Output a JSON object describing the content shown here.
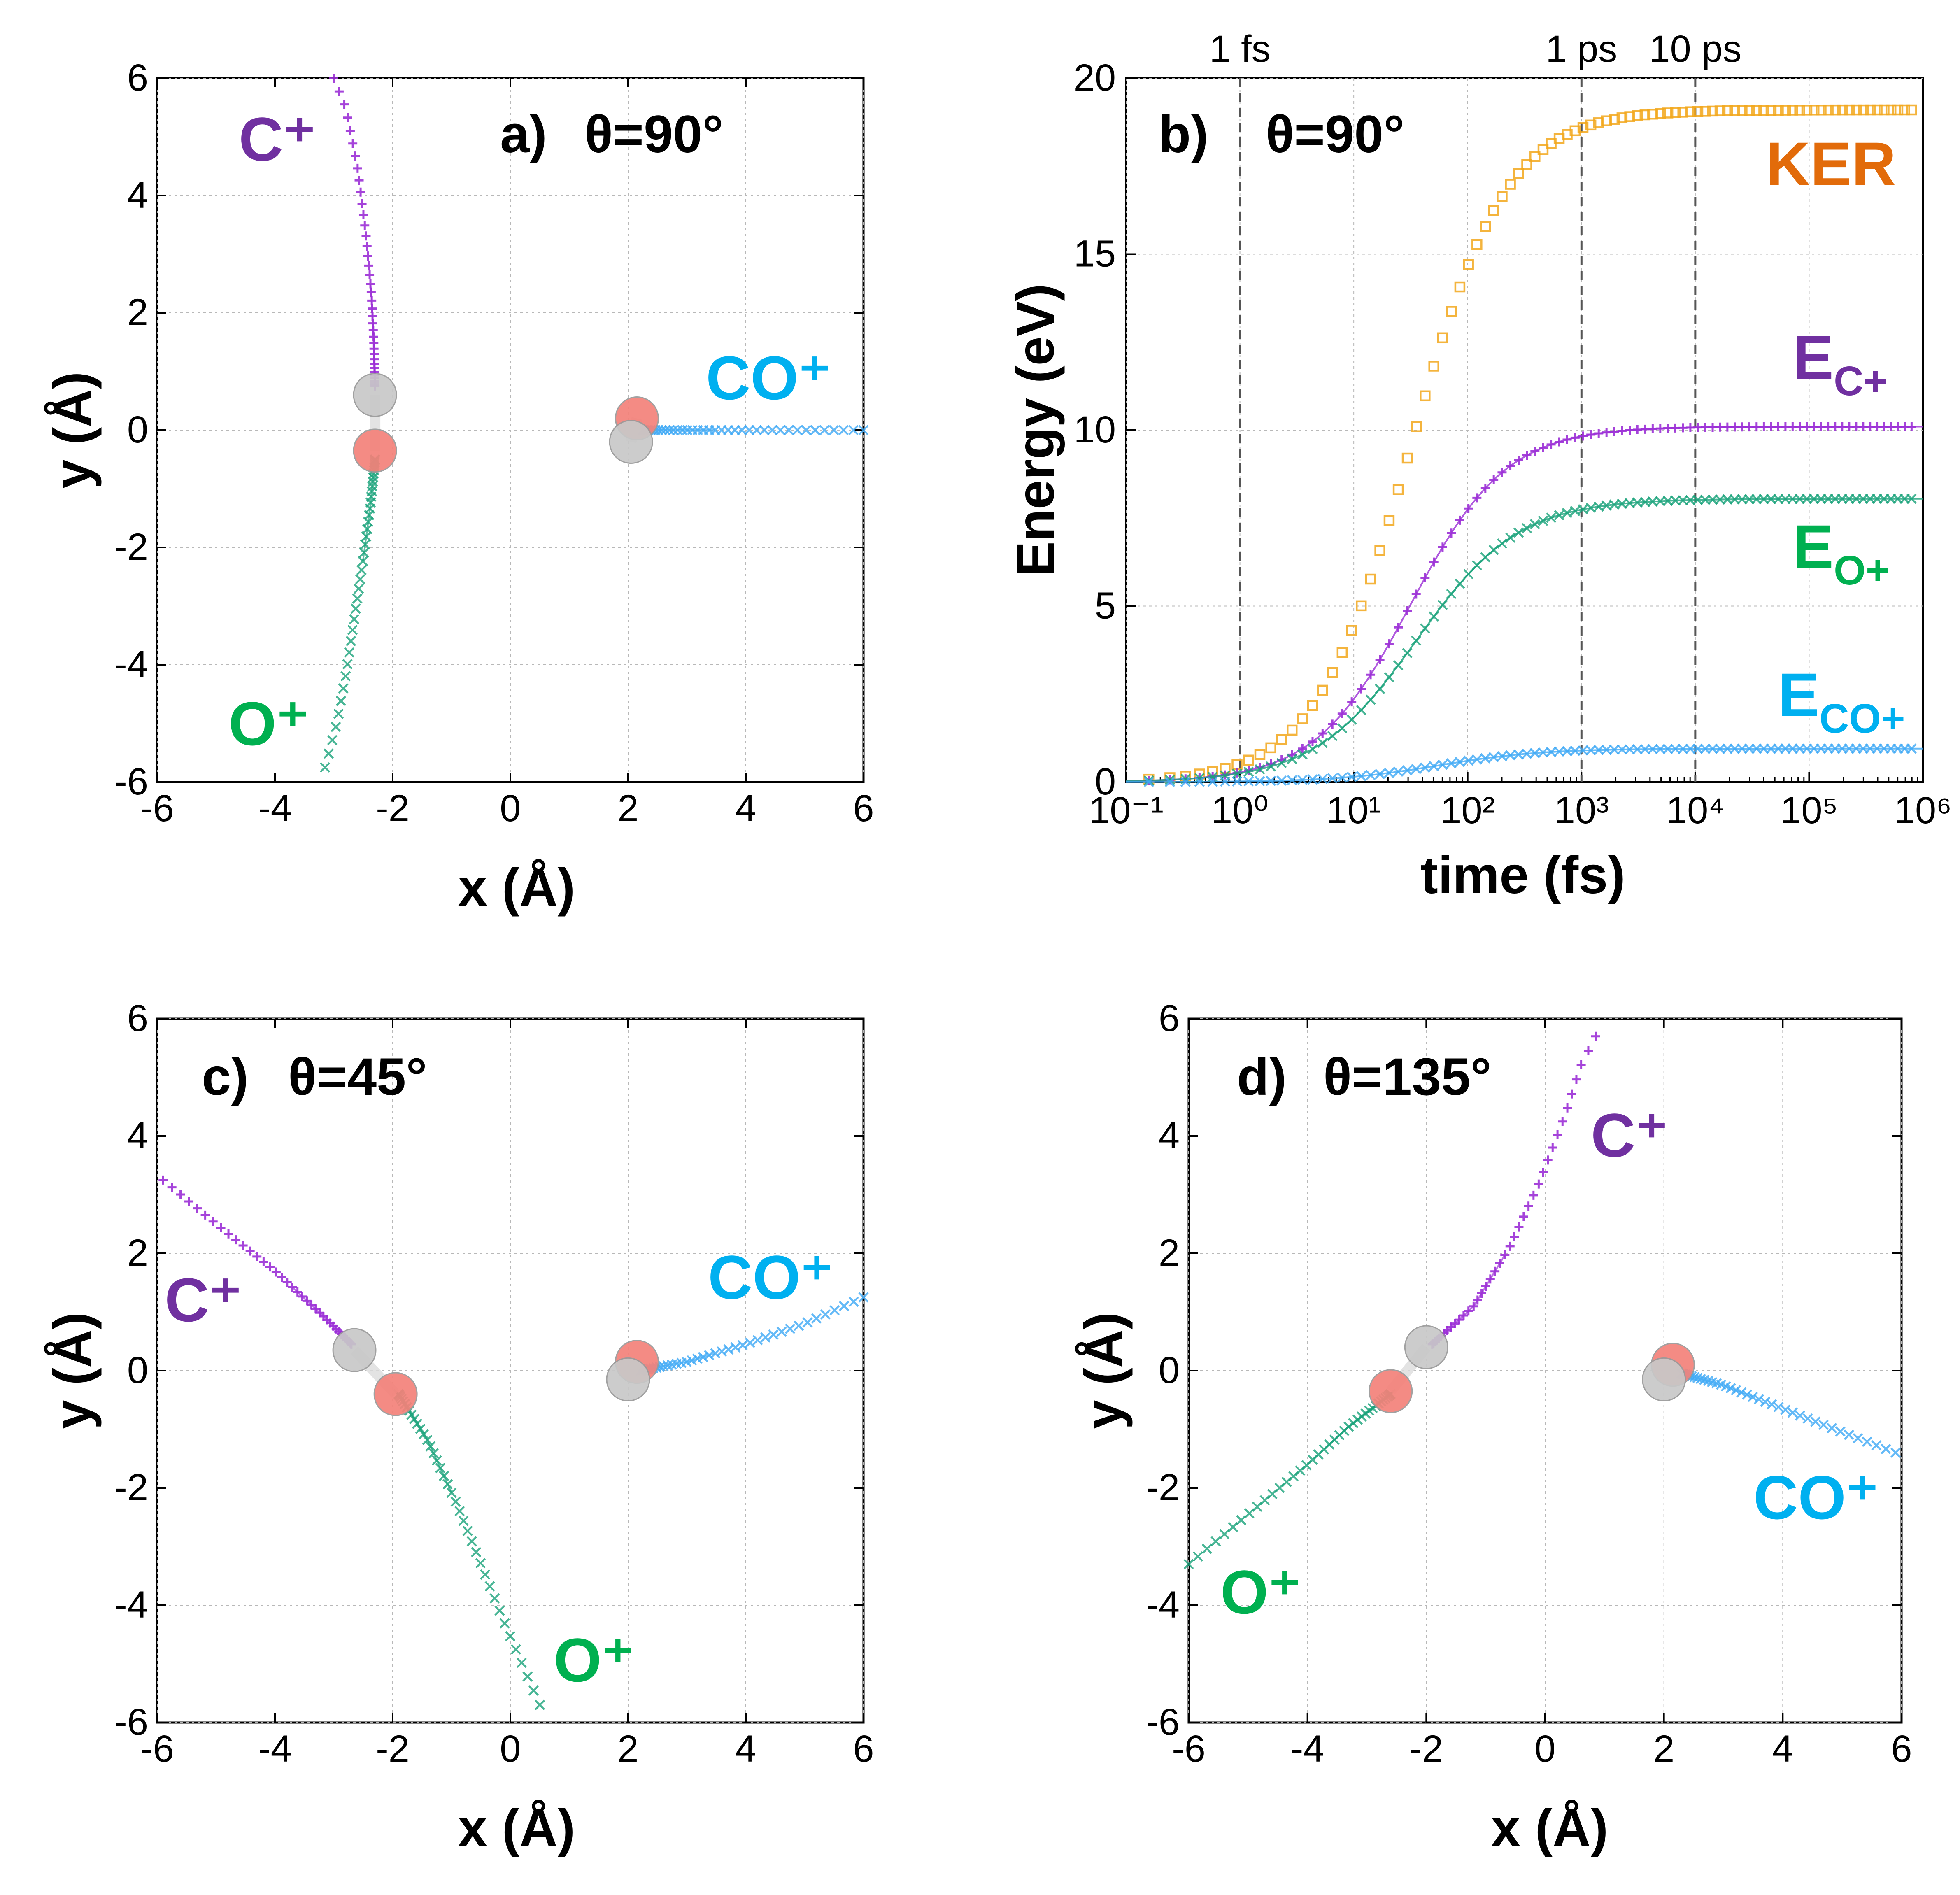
{
  "colors": {
    "purple": "#9b2fd6",
    "green": "#1aa37a",
    "blue": "#3fa9f5",
    "orange": "#f2a71b",
    "purple_label": "#7030a0",
    "green_label": "#00b050",
    "blue_label": "#00b0f0",
    "orange_label": "#e26b0a",
    "c_atom": "#c8c8c8",
    "o_atom": "#f4827a"
  },
  "chart_data": [
    {
      "panel": "a",
      "type": "scatter",
      "title_letter": "a)",
      "title_theta": "θ=90°",
      "xlabel": "x (Å)",
      "ylabel": "y (Å)",
      "xlim": [
        -6,
        6
      ],
      "ylim": [
        -6,
        6
      ],
      "xticks": [
        "-6",
        "-4",
        "-2",
        "0",
        "2",
        "4",
        "6"
      ],
      "yticks": [
        "-6",
        "-4",
        "-2",
        "0",
        "2",
        "4",
        "6"
      ],
      "grid": true,
      "labels": {
        "c": "C⁺",
        "o": "O⁺",
        "co": "CO⁺"
      },
      "series": [
        {
          "name": "C⁺",
          "color": "purple",
          "marker": "+",
          "points": [
            [
              -2.3,
              0.75
            ],
            [
              -2.32,
              1.5
            ],
            [
              -2.36,
              2.3
            ],
            [
              -2.45,
              3.3
            ],
            [
              -2.6,
              4.5
            ],
            [
              -2.8,
              5.5
            ],
            [
              -3.0,
              6.0
            ]
          ]
        },
        {
          "name": "O⁺",
          "color": "green",
          "marker": "x",
          "points": [
            [
              -2.3,
              -0.5
            ],
            [
              -2.38,
              -1.3
            ],
            [
              -2.5,
              -2.2
            ],
            [
              -2.65,
              -3.2
            ],
            [
              -2.8,
              -4.2
            ],
            [
              -2.95,
              -5.0
            ],
            [
              -3.15,
              -5.75
            ]
          ]
        },
        {
          "name": "CO⁺",
          "color": "blue",
          "marker": "x",
          "points": [
            [
              2.25,
              0.0
            ],
            [
              3.0,
              0.0
            ],
            [
              4.0,
              0.0
            ],
            [
              5.0,
              0.0
            ],
            [
              6.0,
              0.0
            ]
          ]
        }
      ],
      "molecules": [
        {
          "atoms": [
            {
              "el": "C",
              "x": -2.3,
              "y": 0.6
            },
            {
              "el": "O",
              "x": -2.3,
              "y": -0.35
            }
          ]
        },
        {
          "atoms": [
            {
              "el": "O",
              "x": 2.15,
              "y": 0.2
            },
            {
              "el": "C",
              "x": 2.05,
              "y": -0.2
            }
          ]
        }
      ]
    },
    {
      "panel": "b",
      "type": "scatter",
      "scale_x": "log",
      "title_letter": "b)",
      "title_theta": "θ=90°",
      "xlabel": "time (fs)",
      "ylabel": "Energy (eV)",
      "xlim": [
        0.1,
        1000000
      ],
      "ylim": [
        0,
        20
      ],
      "xticks": [
        "10⁻¹",
        "10⁰",
        "10¹",
        "10²",
        "10³",
        "10⁴",
        "10⁵",
        "10⁶"
      ],
      "yticks": [
        "0",
        "5",
        "10",
        "15",
        "20"
      ],
      "vlines": [
        {
          "x": 1,
          "label": "1 fs"
        },
        {
          "x": 1000,
          "label": "1 ps"
        },
        {
          "x": 10000,
          "label": "10 ps"
        }
      ],
      "grid": true,
      "series": [
        {
          "name": "KER",
          "color": "orange",
          "marker": "square",
          "final": 19.1,
          "mid_log": 1.5,
          "width": 0.42
        },
        {
          "name": "E_C+",
          "color": "purple",
          "marker": "+",
          "final": 10.1,
          "mid_log": 1.5,
          "width": 0.42
        },
        {
          "name": "E_O+",
          "color": "green",
          "marker": "x",
          "final": 8.05,
          "mid_log": 1.55,
          "width": 0.45
        },
        {
          "name": "E_CO+",
          "color": "blue",
          "marker": "x",
          "final": 0.95,
          "mid_log": 1.75,
          "width": 0.45
        }
      ],
      "series_labels": {
        "ker": "KER",
        "ec": "E",
        "ec_sub": "C+",
        "eo": "E",
        "eo_sub": "O+",
        "eco": "E",
        "eco_sub": "CO+"
      }
    },
    {
      "panel": "c",
      "type": "scatter",
      "title_letter": "c)",
      "title_theta": "θ=45°",
      "xlabel": "x (Å)",
      "ylabel": "y (Å)",
      "xlim": [
        -6,
        6
      ],
      "ylim": [
        -6,
        6
      ],
      "xticks": [
        "-6",
        "-4",
        "-2",
        "0",
        "2",
        "4",
        "6"
      ],
      "yticks": [
        "-6",
        "-4",
        "-2",
        "0",
        "2",
        "4",
        "6"
      ],
      "grid": true,
      "labels": {
        "c": "C⁺",
        "o": "O⁺",
        "co": "CO⁺"
      },
      "series": [
        {
          "name": "C⁺",
          "color": "purple",
          "marker": "+",
          "points": [
            [
              -2.7,
              0.45
            ],
            [
              -3.2,
              0.95
            ],
            [
              -4.0,
              1.7
            ],
            [
              -5.0,
              2.5
            ],
            [
              -5.9,
              3.25
            ]
          ]
        },
        {
          "name": "O⁺",
          "color": "green",
          "marker": "x",
          "points": [
            [
              -1.9,
              -0.4
            ],
            [
              -1.4,
              -1.2
            ],
            [
              -0.9,
              -2.3
            ],
            [
              -0.5,
              -3.3
            ],
            [
              -0.1,
              -4.3
            ],
            [
              0.2,
              -5.0
            ],
            [
              0.5,
              -5.7
            ]
          ]
        },
        {
          "name": "CO⁺",
          "color": "blue",
          "marker": "x",
          "points": [
            [
              2.2,
              0.0
            ],
            [
              3.0,
              0.15
            ],
            [
              4.0,
              0.45
            ],
            [
              5.0,
              0.8
            ],
            [
              6.0,
              1.25
            ]
          ]
        }
      ],
      "molecules": [
        {
          "atoms": [
            {
              "el": "C",
              "x": -2.65,
              "y": 0.35
            },
            {
              "el": "O",
              "x": -1.95,
              "y": -0.4
            }
          ]
        },
        {
          "atoms": [
            {
              "el": "O",
              "x": 2.15,
              "y": 0.15
            },
            {
              "el": "C",
              "x": 2.0,
              "y": -0.15
            }
          ]
        }
      ]
    },
    {
      "panel": "d",
      "type": "scatter",
      "title_letter": "d)",
      "title_theta": "θ=135°",
      "xlabel": "x (Å)",
      "ylabel": "y (Å)",
      "xlim": [
        -6,
        6
      ],
      "ylim": [
        -6,
        6
      ],
      "xticks": [
        "-6",
        "-4",
        "-2",
        "0",
        "2",
        "4",
        "6"
      ],
      "yticks": [
        "-6",
        "-4",
        "-2",
        "0",
        "2",
        "4",
        "6"
      ],
      "grid": true,
      "labels": {
        "c": "C⁺",
        "o": "O⁺",
        "co": "CO⁺"
      },
      "series": [
        {
          "name": "C⁺",
          "color": "purple",
          "marker": "+",
          "points": [
            [
              -1.9,
              0.45
            ],
            [
              -1.2,
              1.1
            ],
            [
              -0.6,
              2.1
            ],
            [
              -0.1,
              3.2
            ],
            [
              0.35,
              4.4
            ],
            [
              0.6,
              5.2
            ],
            [
              0.85,
              5.7
            ]
          ]
        },
        {
          "name": "O⁺",
          "color": "green",
          "marker": "x",
          "points": [
            [
              -2.6,
              -0.4
            ],
            [
              -3.3,
              -0.95
            ],
            [
              -4.0,
              -1.6
            ],
            [
              -5.0,
              -2.45
            ],
            [
              -6.0,
              -3.3
            ]
          ]
        },
        {
          "name": "CO⁺",
          "color": "blue",
          "marker": "x",
          "points": [
            [
              2.3,
              -0.05
            ],
            [
              3.0,
              -0.25
            ],
            [
              4.0,
              -0.65
            ],
            [
              5.0,
              -1.05
            ],
            [
              5.9,
              -1.4
            ]
          ]
        }
      ],
      "molecules": [
        {
          "atoms": [
            {
              "el": "C",
              "x": -2.0,
              "y": 0.4
            },
            {
              "el": "O",
              "x": -2.6,
              "y": -0.35
            }
          ]
        },
        {
          "atoms": [
            {
              "el": "O",
              "x": 2.15,
              "y": 0.1
            },
            {
              "el": "C",
              "x": 2.0,
              "y": -0.15
            }
          ]
        }
      ]
    }
  ]
}
